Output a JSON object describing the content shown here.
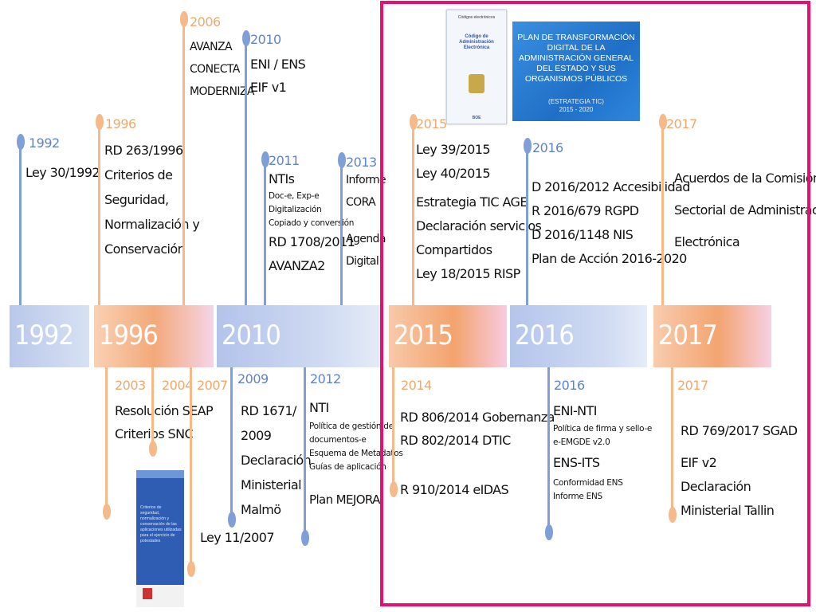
{
  "colors": {
    "blue": "#7f9fd6",
    "orange": "#f5b98a",
    "frame": "#e8106e"
  },
  "bands": [
    "1992",
    "1996",
    "2010",
    "2015",
    "2016",
    "2017"
  ],
  "top_events": [
    {
      "year": "1992",
      "lines": [
        "Ley 30/1992"
      ]
    },
    {
      "year": "1996",
      "lines": [
        "RD 263/1996",
        "Criterios de",
        "Seguridad,",
        "Normalización y",
        "Conservación"
      ]
    },
    {
      "year": "2006",
      "lines": [
        "AVANZA",
        "CONECTA",
        "MODERNIZA"
      ]
    },
    {
      "year": "2010",
      "lines": [
        "ENI / ENS",
        "EIF v1"
      ]
    },
    {
      "year": "2011",
      "title": "NTIs",
      "small": [
        "Doc-e, Exp-e",
        "Digitalización",
        "Copiado y conversión"
      ],
      "lines": [
        "RD 1708/2011",
        "AVANZA2"
      ]
    },
    {
      "year": "2013",
      "lines": [
        "Informe",
        "CORA",
        "Agenda",
        "Digital"
      ]
    },
    {
      "year": "2015",
      "lines": [
        "Ley 39/2015",
        "Ley 40/2015",
        "Estrategia TIC AGE",
        "Declaración servicios",
        "Compartidos",
        "Ley 18/2015 RISP"
      ]
    },
    {
      "year": "2016",
      "lines": [
        "D 2016/2012 Accesibilidad",
        "R 2016/679 RGPD",
        "D 2016/1148 NIS",
        "Plan de Acción 2016-2020"
      ]
    },
    {
      "year": "2017",
      "lines": [
        "Acuerdos de la Comisión",
        "Sectorial de Administración",
        "Electrónica"
      ]
    }
  ],
  "bottom_events": [
    {
      "year": "2003",
      "lines": [
        "Resolución SEAP",
        "Criterios SNC"
      ]
    },
    {
      "year": "2004"
    },
    {
      "year": "2007",
      "lines": [
        "Ley 11/2007"
      ]
    },
    {
      "year": "2009",
      "lines": [
        "RD 1671/",
        "2009",
        "Declaración",
        "Ministerial",
        "Malmö"
      ]
    },
    {
      "year": "2012",
      "title": "NTI",
      "small": [
        "Política de gestión de",
        "documentos-e",
        "Esquema de Metadatos",
        "Guías de aplicación"
      ],
      "lines": [
        "Plan MEJORA"
      ]
    },
    {
      "year": "2014",
      "lines": [
        "RD 806/2014 Gobernanza",
        "RD 802/2014 DTIC",
        "R 910/2014 eIDAS"
      ]
    },
    {
      "year": "2016",
      "title": "ENI-NTI",
      "small": [
        "Política de firma y sello-e",
        "e-EMGDE v2.0"
      ],
      "title2": "ENS-ITS",
      "small2": [
        "Conformidad ENS",
        "Informe ENS"
      ]
    },
    {
      "year": "2017",
      "lines": [
        "RD 769/2017 SGAD",
        "EIF v2",
        "Declaración",
        "Ministerial Tallin"
      ]
    }
  ],
  "covers": {
    "code": {
      "header": "Códigos electrónicos",
      "title": "Código de Administración Electrónica",
      "footer": "BOE"
    },
    "plan": {
      "title": "PLAN DE TRANSFORMACIÓN DIGITAL DE LA ADMINISTRACIÓN GENERAL DEL ESTADO Y SUS ORGANISMOS PÚBLICOS",
      "subtitle": "(ESTRATEGIA TIC)",
      "years": "2015 - 2020"
    },
    "criterios": {
      "title": "Criterios de seguridad, normalización y conservación de las aplicaciones utilizadas para el ejercicio de potestades"
    }
  }
}
